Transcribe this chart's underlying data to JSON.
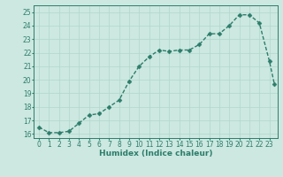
{
  "x": [
    0,
    1,
    2,
    3,
    4,
    5,
    6,
    7,
    8,
    9,
    10,
    11,
    12,
    13,
    14,
    15,
    16,
    17,
    18,
    19,
    20,
    21,
    22,
    23,
    23.5
  ],
  "y": [
    16.5,
    16.1,
    16.1,
    16.2,
    16.8,
    17.4,
    17.5,
    18.0,
    18.5,
    19.9,
    21.0,
    21.7,
    22.2,
    22.1,
    22.2,
    22.2,
    22.6,
    23.4,
    23.4,
    24.0,
    24.8,
    24.8,
    24.2,
    21.4,
    19.7
  ],
  "line_color": "#2d7d6b",
  "marker_color": "#2d7d6b",
  "bg_color": "#cce8e0",
  "grid_color": "#b0d8cc",
  "xlabel": "Humidex (Indice chaleur)",
  "xlim": [
    -0.5,
    23.8
  ],
  "ylim": [
    15.7,
    25.5
  ],
  "yticks": [
    16,
    17,
    18,
    19,
    20,
    21,
    22,
    23,
    24,
    25
  ],
  "xticks": [
    0,
    1,
    2,
    3,
    4,
    5,
    6,
    7,
    8,
    9,
    10,
    11,
    12,
    13,
    14,
    15,
    16,
    17,
    18,
    19,
    20,
    21,
    22,
    23
  ],
  "xlabel_fontsize": 6.5,
  "tick_fontsize": 5.5,
  "line_width": 1.0,
  "marker_size": 2.5,
  "figwidth": 3.2,
  "figheight": 2.0,
  "dpi": 100
}
